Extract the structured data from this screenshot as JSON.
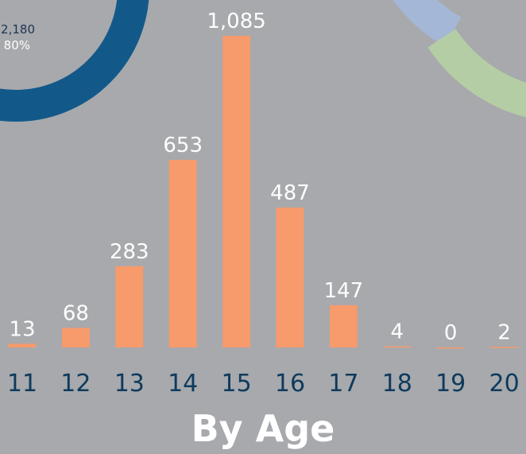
{
  "chart_data": {
    "type": "bar",
    "title": "By Age",
    "categories": [
      "11",
      "12",
      "13",
      "14",
      "15",
      "16",
      "17",
      "18",
      "19",
      "20"
    ],
    "values": [
      13,
      68,
      283,
      653,
      1085,
      487,
      147,
      4,
      0,
      2
    ],
    "value_labels": [
      "13",
      "68",
      "283",
      "653",
      "1,085",
      "487",
      "147",
      "4",
      "0",
      "2"
    ],
    "color": "#f79a6c",
    "annotations": [
      "2,180",
      "80%"
    ]
  }
}
